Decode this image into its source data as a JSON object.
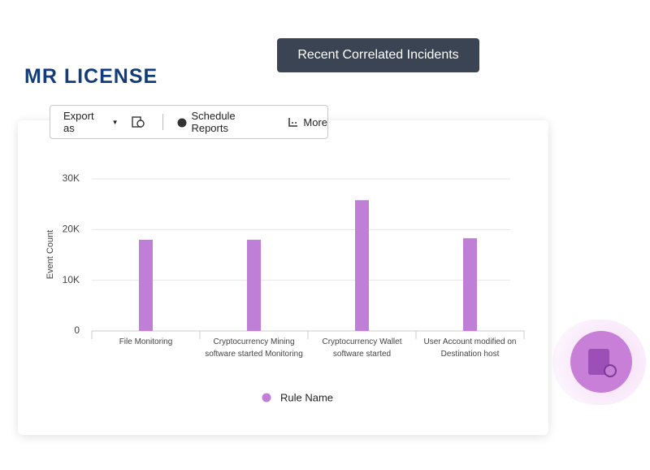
{
  "logo": "MR LICENSE",
  "badge": "Recent Correlated Incidents",
  "toolbar": {
    "export": "Export as",
    "schedule": "Schedule Reports",
    "more": "More"
  },
  "chart_data": {
    "type": "bar",
    "y_label": "Event Count",
    "categories": [
      "File Monitoring",
      "Cryptocurrency Mining software started Monitoring",
      "Cryptocurrency Wallet software started",
      "User Account modified on Destination host"
    ],
    "series": [
      {
        "name": "Rule Name",
        "color": "#bf7fd6",
        "values": [
          18000,
          18000,
          25800,
          18300
        ]
      }
    ],
    "ylim": [
      0,
      30000
    ],
    "yticks": [
      0,
      {
        "value": 10000,
        "label": "10K"
      },
      {
        "value": 20000,
        "label": "20K"
      },
      {
        "value": 30000,
        "label": "30K"
      }
    ],
    "grid": true
  }
}
